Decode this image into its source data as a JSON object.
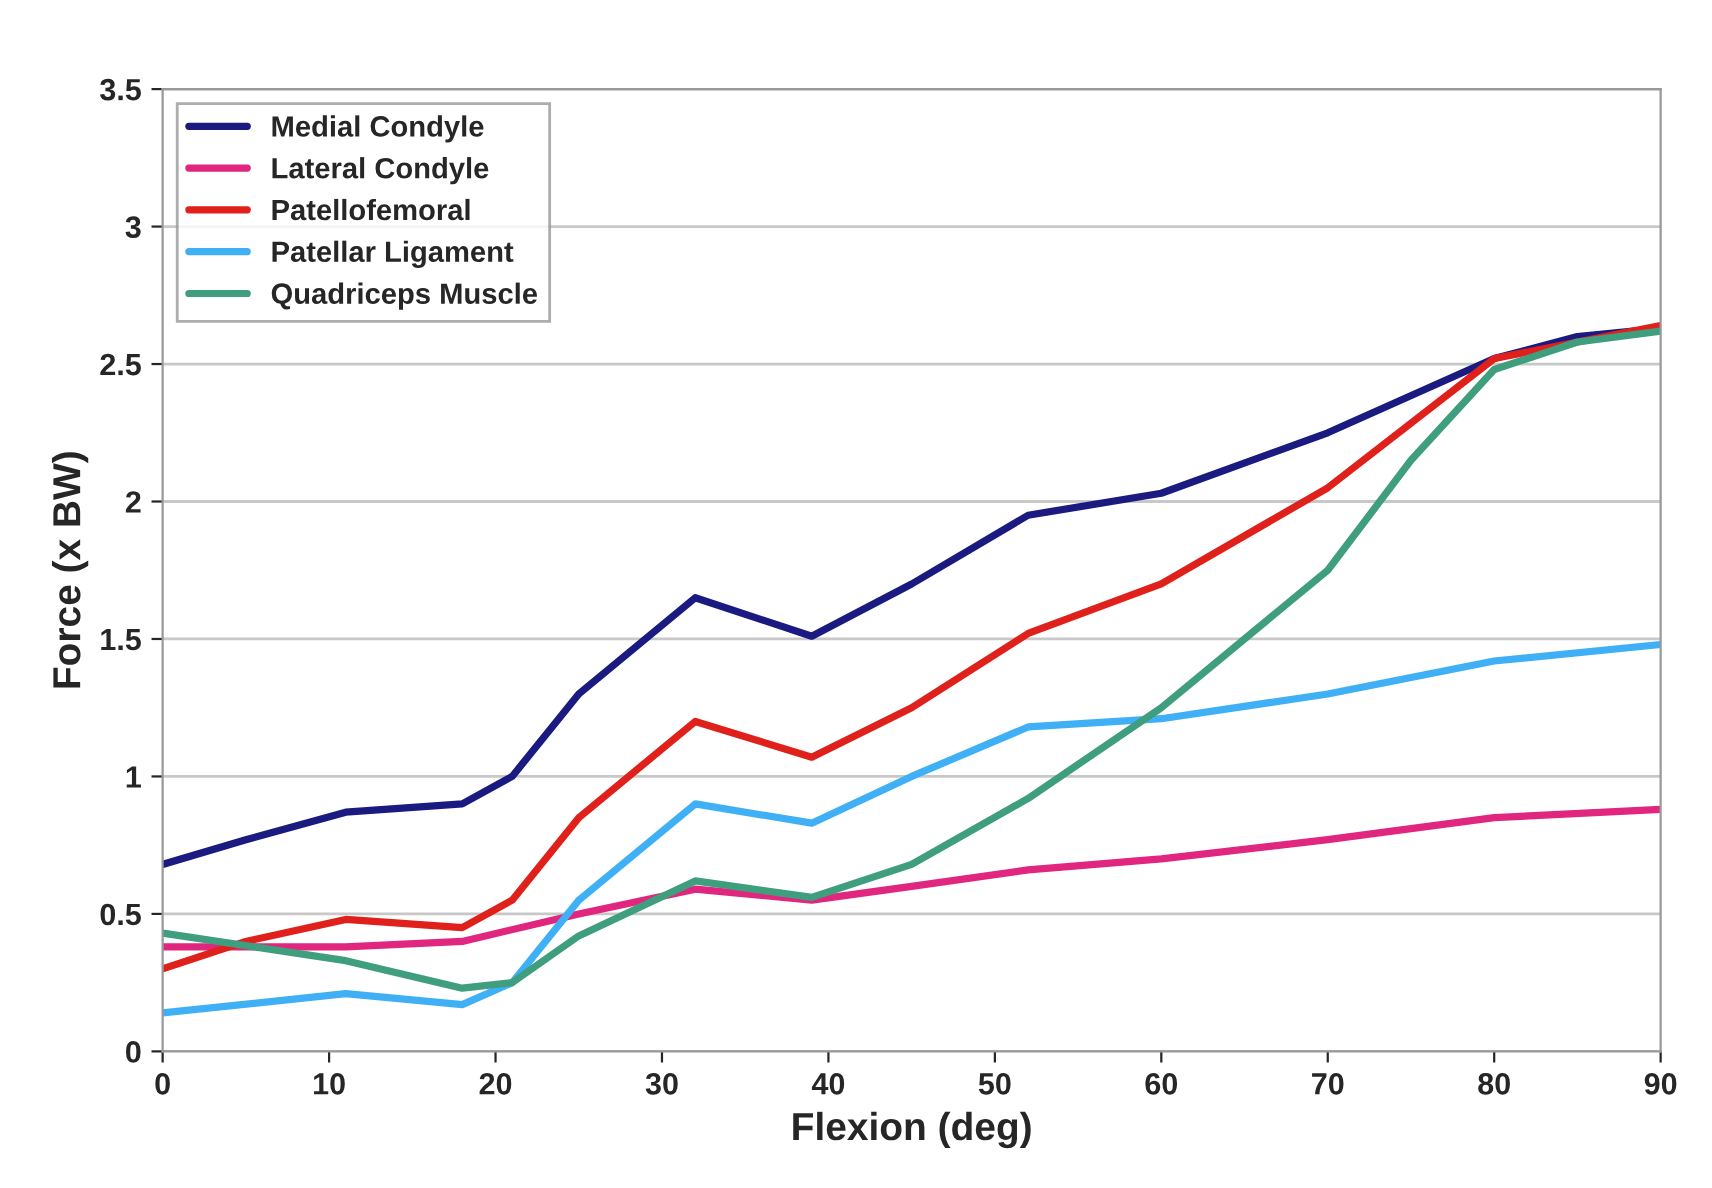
{
  "chart_data": {
    "type": "line",
    "xlabel": "Flexion (deg)",
    "ylabel": "Force (x BW)",
    "xlim": [
      0,
      90
    ],
    "xticks": [
      0,
      10,
      20,
      30,
      40,
      50,
      60,
      70,
      80,
      90
    ],
    "ylim": [
      0,
      3.5
    ],
    "yticks": [
      0,
      0.5,
      1,
      1.5,
      2,
      2.5,
      3,
      3.5
    ],
    "grid": "y",
    "legend": "top left",
    "marker": "none",
    "line_style": "solid",
    "series": [
      {
        "name": "Medial Condyle",
        "color": "#1a1a80",
        "x": [
          0,
          5,
          11,
          18,
          21,
          25,
          32,
          39,
          45,
          52,
          60,
          70,
          80,
          85,
          90
        ],
        "values": [
          0.68,
          0.77,
          0.87,
          0.9,
          1.0,
          1.3,
          1.65,
          1.51,
          1.7,
          1.95,
          2.03,
          2.25,
          2.52,
          2.6,
          2.63
        ]
      },
      {
        "name": "Lateral Condyle",
        "color": "#e0267e",
        "x": [
          0,
          11,
          18,
          25,
          32,
          39,
          45,
          52,
          60,
          70,
          80,
          90
        ],
        "values": [
          0.38,
          0.38,
          0.4,
          0.5,
          0.59,
          0.55,
          0.6,
          0.66,
          0.7,
          0.77,
          0.85,
          0.88
        ]
      },
      {
        "name": "Patellofemoral",
        "color": "#e0201a",
        "x": [
          0,
          5,
          11,
          18,
          21,
          25,
          32,
          39,
          45,
          52,
          60,
          70,
          80,
          90
        ],
        "values": [
          0.3,
          0.4,
          0.48,
          0.45,
          0.55,
          0.85,
          1.2,
          1.07,
          1.25,
          1.52,
          1.7,
          2.05,
          2.52,
          2.64
        ]
      },
      {
        "name": "Patellar Ligament",
        "color": "#3fb0f5",
        "x": [
          0,
          11,
          18,
          21,
          25,
          32,
          39,
          45,
          52,
          60,
          70,
          80,
          90
        ],
        "values": [
          0.14,
          0.21,
          0.17,
          0.25,
          0.55,
          0.9,
          0.83,
          1.0,
          1.18,
          1.21,
          1.3,
          1.42,
          1.48
        ]
      },
      {
        "name": "Quadriceps Muscle",
        "color": "#3f9e7e",
        "x": [
          0,
          11,
          18,
          21,
          25,
          32,
          39,
          45,
          52,
          60,
          70,
          75,
          80,
          85,
          90
        ],
        "values": [
          0.43,
          0.33,
          0.23,
          0.25,
          0.42,
          0.62,
          0.56,
          0.68,
          0.92,
          1.25,
          1.75,
          2.15,
          2.48,
          2.58,
          2.62
        ]
      }
    ]
  }
}
